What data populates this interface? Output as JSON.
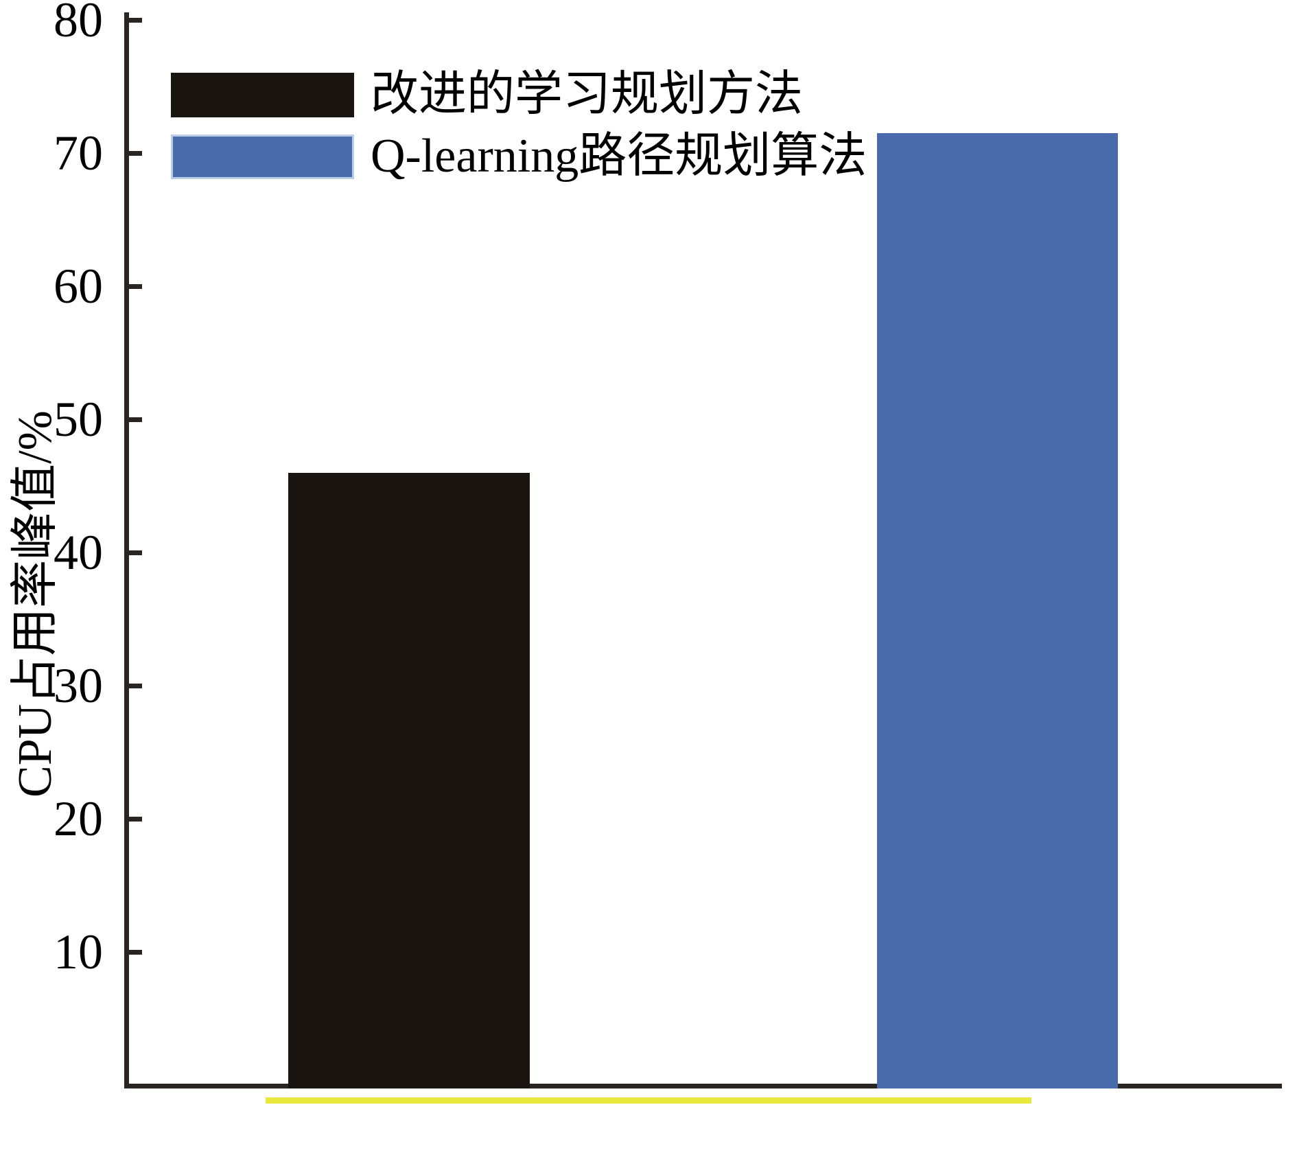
{
  "chart_data": {
    "type": "bar",
    "title": "",
    "xlabel": "",
    "ylabel": "CPU占用率峰值/%",
    "ylim": [
      0,
      80
    ],
    "yticks": [
      80,
      70,
      60,
      50,
      40,
      30,
      20,
      10
    ],
    "grid": false,
    "legend_position": "top-left",
    "categories": [
      "改进的学习规划方法",
      "Q-learning路径规划算法"
    ],
    "series": [
      {
        "name": "改进的学习规划方法",
        "value": 46,
        "color": "#1a1511"
      },
      {
        "name": "Q-learning路径规划算法",
        "value": 71.5,
        "color": "#4a6bab"
      }
    ]
  },
  "colors": {
    "background": "#ffffff",
    "axis": "#2b2521",
    "text": "#000000",
    "bar_black": "#1a1511",
    "bar_blue": "#4a6bab",
    "blue_swatch_edge": "#b9cde6",
    "highlight_underline": "#e9e93d"
  }
}
